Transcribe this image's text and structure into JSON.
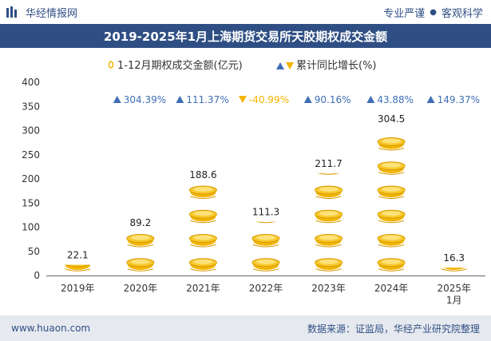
{
  "header": {
    "brand": "华经情报网",
    "tag_1": "专业严谨",
    "tag_2": "客观科学"
  },
  "title": "2019-2025年1月上海期货交易所天胶期权成交金额",
  "colors": {
    "brand": "#2f4f84",
    "coin_gold": "#f2b500",
    "arrow_up": "#3f6eb6",
    "arrow_down": "#f2b500"
  },
  "chart_data": {
    "type": "bar",
    "categories": [
      "2019年",
      "2020年",
      "2021年",
      "2022年",
      "2023年",
      "2024年",
      "2025年\n1月"
    ],
    "series": [
      {
        "name": "1-12月期权成交金额(亿元)",
        "values": [
          22.1,
          89.2,
          188.6,
          111.3,
          211.7,
          304.5,
          16.3
        ],
        "value_labels": [
          "22.1",
          "89.2",
          "188.6",
          "111.3",
          "211.7",
          "304.5",
          "16.3"
        ]
      },
      {
        "name": "累计同比增长(%)",
        "values": [
          null,
          304.39,
          111.37,
          -40.99,
          90.16,
          43.88,
          149.37
        ],
        "value_labels": [
          "",
          "304.39%",
          "111.37%",
          "-40.99%",
          "90.16%",
          "43.88%",
          "149.37%"
        ]
      }
    ],
    "ylim": [
      0,
      400
    ],
    "yticks": [
      0,
      50,
      100,
      150,
      200,
      250,
      300,
      350,
      400
    ],
    "grid": false,
    "legend_position": "top",
    "pictograph_unit": 50
  },
  "footer": {
    "url": "www.huaon.com",
    "source": "数据来源：证监局，华经产业研究院整理"
  }
}
